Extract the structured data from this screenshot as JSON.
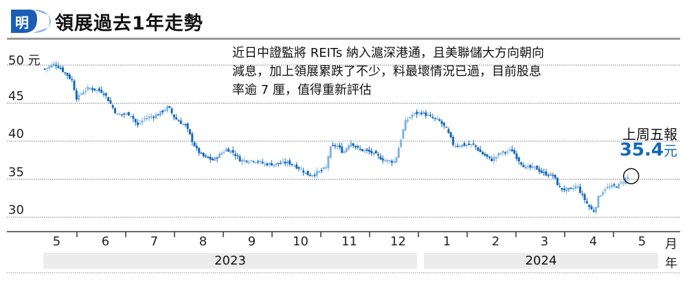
{
  "header": {
    "logo_text": "明",
    "title": "領展過去1年走勢"
  },
  "annotation": {
    "lines": [
      "近日中證監將 REITs 納入滬深港通，且美聯儲大方向朝向",
      "減息，加上領展累跌了不少，料最壞情況已過，目前股息",
      "率逾 7 厘，值得重新評估"
    ]
  },
  "last_price": {
    "label": "上周五報",
    "value": "35.4",
    "unit": "元"
  },
  "colors": {
    "accent": "#1469b8",
    "candle_light": "#7fb2e3",
    "grid": "#888888"
  },
  "chart_data": {
    "type": "candlestick",
    "title": "領展過去1年走勢",
    "ylim": [
      30,
      51
    ],
    "y_ticks": [
      {
        "value": 50,
        "label": "50 元"
      },
      {
        "value": 45,
        "label": "45"
      },
      {
        "value": 40,
        "label": "40"
      },
      {
        "value": 35,
        "label": "35"
      },
      {
        "value": 30,
        "label": "30"
      }
    ],
    "x_unit_label": "月",
    "year_unit_label": "年",
    "x_ticks": [
      "5",
      "6",
      "7",
      "8",
      "9",
      "10",
      "11",
      "12",
      "1",
      "2",
      "3",
      "4",
      "5"
    ],
    "years": [
      {
        "label": "2023",
        "from_month": 0,
        "to_month": 8
      },
      {
        "label": "2024",
        "from_month": 8,
        "to_month": 13
      }
    ],
    "x_note": "x = months elapsed since start of May 2023",
    "close_path": [
      [
        0.34,
        49.5
      ],
      [
        0.55,
        50.2
      ],
      [
        0.76,
        49
      ],
      [
        0.9,
        48
      ],
      [
        1.0,
        45.5
      ],
      [
        1.11,
        46.5
      ],
      [
        1.25,
        47
      ],
      [
        1.54,
        46.5
      ],
      [
        1.68,
        45
      ],
      [
        1.82,
        43.5
      ],
      [
        2.1,
        43.6
      ],
      [
        2.24,
        42
      ],
      [
        2.38,
        43
      ],
      [
        2.66,
        43.5
      ],
      [
        2.87,
        44.5
      ],
      [
        3.01,
        43
      ],
      [
        3.23,
        42
      ],
      [
        3.44,
        39
      ],
      [
        3.58,
        38
      ],
      [
        3.79,
        37.5
      ],
      [
        4.07,
        39
      ],
      [
        4.21,
        38.5
      ],
      [
        4.35,
        37.5
      ],
      [
        4.63,
        37.5
      ],
      [
        4.85,
        37
      ],
      [
        5.06,
        37
      ],
      [
        5.34,
        37.2
      ],
      [
        5.55,
        36.5
      ],
      [
        5.76,
        35.5
      ],
      [
        5.97,
        36
      ],
      [
        6.11,
        36.5
      ],
      [
        6.18,
        39
      ],
      [
        6.32,
        39.5
      ],
      [
        6.46,
        38.5
      ],
      [
        6.61,
        40
      ],
      [
        6.75,
        39
      ],
      [
        7.03,
        38.5
      ],
      [
        7.31,
        37.5
      ],
      [
        7.52,
        37.3
      ],
      [
        7.59,
        39
      ],
      [
        7.73,
        42.5
      ],
      [
        7.87,
        43.5
      ],
      [
        8.08,
        43.8
      ],
      [
        8.23,
        43.2
      ],
      [
        8.44,
        42.6
      ],
      [
        8.58,
        41.5
      ],
      [
        8.72,
        39.5
      ],
      [
        8.93,
        39.5
      ],
      [
        9.14,
        39.5
      ],
      [
        9.28,
        38.5
      ],
      [
        9.49,
        37.5
      ],
      [
        9.7,
        38.5
      ],
      [
        9.92,
        38.8
      ],
      [
        10.06,
        37.5
      ],
      [
        10.2,
        36.5
      ],
      [
        10.41,
        36.5
      ],
      [
        10.55,
        35.8
      ],
      [
        10.76,
        35.5
      ],
      [
        10.9,
        33.8
      ],
      [
        11.11,
        33.5
      ],
      [
        11.25,
        34.2
      ],
      [
        11.39,
        32.5
      ],
      [
        11.54,
        31
      ],
      [
        11.61,
        30.8
      ],
      [
        11.68,
        32.5
      ],
      [
        11.82,
        33.8
      ],
      [
        11.96,
        34
      ],
      [
        12.1,
        34.2
      ],
      [
        12.24,
        35
      ],
      [
        12.32,
        35.4
      ]
    ],
    "highlight": {
      "month": 12.32,
      "value": 35.4
    }
  }
}
